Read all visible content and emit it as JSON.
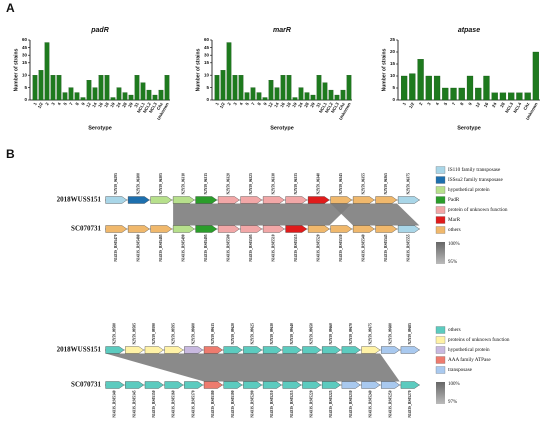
{
  "panel_a": {
    "label": "A"
  },
  "chart_data": [
    {
      "type": "bar",
      "title": "padR",
      "x_label": "Serotype",
      "y_label": "Number of strains",
      "color": "#1e7a1e",
      "categories": [
        "1",
        "1/2",
        "2",
        "3",
        "4",
        "5",
        "7",
        "8",
        "9",
        "12",
        "14",
        "16",
        "18",
        "19",
        "24",
        "28",
        "29",
        "31",
        "NCL1",
        "NCL2",
        "NCL3",
        "Chz",
        "Unknown"
      ],
      "values": [
        10,
        12,
        55,
        10,
        10,
        3,
        5,
        3,
        1,
        8,
        5,
        10,
        10,
        1,
        5,
        3,
        2,
        10,
        7,
        4,
        2,
        4,
        10
      ],
      "ylim": [
        0,
        60
      ],
      "yticks": [
        0,
        5,
        10,
        15,
        30,
        45,
        60
      ],
      "axis_break": 15
    },
    {
      "type": "bar",
      "title": "marR",
      "x_label": "Serotype",
      "y_label": "Number of strains",
      "color": "#1e7a1e",
      "categories": [
        "1",
        "1/2",
        "2",
        "3",
        "4",
        "5",
        "7",
        "8",
        "9",
        "12",
        "14",
        "16",
        "18",
        "19",
        "24",
        "28",
        "29",
        "31",
        "NCL1",
        "NCL2",
        "NCL3",
        "Chz",
        "Unknown"
      ],
      "values": [
        10,
        12,
        55,
        10,
        10,
        3,
        5,
        3,
        1,
        8,
        5,
        10,
        10,
        1,
        5,
        3,
        2,
        10,
        7,
        4,
        2,
        4,
        10
      ],
      "ylim": [
        0,
        60
      ],
      "yticks": [
        0,
        5,
        10,
        15,
        30,
        45,
        60
      ],
      "axis_break": 15
    },
    {
      "type": "bar",
      "title": "atpase",
      "x_label": "Serotype",
      "y_label": "Number of strains",
      "color": "#1e7a1e",
      "categories": [
        "1",
        "1/2",
        "2",
        "3",
        "4",
        "5",
        "7",
        "8",
        "9",
        "12",
        "16",
        "24",
        "28",
        "NCL3",
        "NCL4",
        "Chz",
        "Unknown"
      ],
      "values": [
        10,
        11,
        17,
        10,
        10,
        5,
        5,
        5,
        10,
        5,
        10,
        3,
        3,
        3,
        3,
        3,
        20
      ],
      "ylim": [
        0,
        25
      ],
      "yticks": [
        0,
        5,
        10,
        15,
        20,
        25
      ]
    }
  ],
  "panel_b": {
    "label": "B",
    "diagrams": [
      {
        "top_name": "2018WUSS151",
        "bottom_name": "SC070731",
        "legend": [
          {
            "name": "IS110 family transposase",
            "color": "#a9d6e8"
          },
          {
            "name": "ISSsu2 family transposase",
            "color": "#1d6fae"
          },
          {
            "name": "hypothetical protein",
            "color": "#b7e08c"
          },
          {
            "name": "PadR",
            "color": "#2a9d2a"
          },
          {
            "name": "protein of unknown function",
            "color": "#f2a7a7"
          },
          {
            "name": "MarR",
            "color": "#e01b1b"
          },
          {
            "name": "others",
            "color": "#f0b86c"
          }
        ],
        "identity_max": "100%",
        "identity_min": "95%",
        "top_genes": [
          {
            "label": "N2Y59_06295",
            "kind": 0
          },
          {
            "label": "N2Y59_06300",
            "kind": 1
          },
          {
            "label": "N2Y59_06305",
            "kind": 2
          },
          {
            "label": "N2Y59_06310",
            "kind": 2
          },
          {
            "label": "N2Y59_06315",
            "kind": 3
          },
          {
            "label": "N2Y59_06320",
            "kind": 4
          },
          {
            "label": "N2Y59_06325",
            "kind": 4
          },
          {
            "label": "N2Y59_06330",
            "kind": 4
          },
          {
            "label": "N2Y59_06335",
            "kind": 4
          },
          {
            "label": "N2Y59_06340",
            "kind": 5
          },
          {
            "label": "N2Y59_06345",
            "kind": 6
          },
          {
            "label": "N2Y59_06355",
            "kind": 6
          },
          {
            "label": "N2Y59_06365",
            "kind": 6
          },
          {
            "label": "N2Y59_06375",
            "kind": 0
          }
        ],
        "bottom_genes": [
          {
            "label": "N1433S_RS05470",
            "kind": 6
          },
          {
            "label": "N1433S_RS05480",
            "kind": 6
          },
          {
            "label": "N1433S_RS05485",
            "kind": 6
          },
          {
            "label": "N1433S_RS05490",
            "kind": 2
          },
          {
            "label": "N1433S_RS05495",
            "kind": 3
          },
          {
            "label": "N1433S_RS05500",
            "kind": 4
          },
          {
            "label": "N1433S_RS05505",
            "kind": 4
          },
          {
            "label": "N1433S_RS05510",
            "kind": 4
          },
          {
            "label": "N1433S_RS05515",
            "kind": 5
          },
          {
            "label": "N1433S_RS05520",
            "kind": 6
          },
          {
            "label": "N1433S_RS05530",
            "kind": 6
          },
          {
            "label": "N1433S_RS05540",
            "kind": 6
          },
          {
            "label": "N1433S_RS05545",
            "kind": 6
          },
          {
            "label": "N1433S_RS05555",
            "kind": 0
          }
        ]
      },
      {
        "top_name": "2018WUSS151",
        "bottom_name": "SC070731",
        "legend": [
          {
            "name": "others",
            "color": "#5ccbbf"
          },
          {
            "name": "proteins of unknown function",
            "color": "#fff2a6"
          },
          {
            "name": "hypothetical protein",
            "color": "#c8b9e0"
          },
          {
            "name": "AAA family ATPase",
            "color": "#ee7b6e"
          },
          {
            "name": "transposase",
            "color": "#a9c9ef"
          }
        ],
        "identity_max": "100%",
        "identity_min": "97%",
        "top_genes": [
          {
            "label": "N2Y59_09580",
            "kind": 0
          },
          {
            "label": "N2Y59_09585",
            "kind": 1
          },
          {
            "label": "N2Y59_09590",
            "kind": 1
          },
          {
            "label": "N2Y59_09595",
            "kind": 1
          },
          {
            "label": "N2Y59_09600",
            "kind": 2
          },
          {
            "label": "N2Y59_09615",
            "kind": 3
          },
          {
            "label": "N2Y59_09620",
            "kind": 0
          },
          {
            "label": "N2Y59_09625",
            "kind": 0
          },
          {
            "label": "N2Y59_09630",
            "kind": 0
          },
          {
            "label": "N2Y59_09640",
            "kind": 0
          },
          {
            "label": "N2Y59_09650",
            "kind": 0
          },
          {
            "label": "N2Y59_09660",
            "kind": 0
          },
          {
            "label": "N2Y59_09670",
            "kind": 0
          },
          {
            "label": "N2Y59_09675",
            "kind": 1
          },
          {
            "label": "N2Y59_09680",
            "kind": 4
          },
          {
            "label": "N2Y59_09685",
            "kind": 4
          }
        ],
        "bottom_genes": [
          {
            "label": "N1433S_RS05140",
            "kind": 0
          },
          {
            "label": "N1433S_RS05145",
            "kind": 0
          },
          {
            "label": "N1433S_RS05150",
            "kind": 0
          },
          {
            "label": "N1433S_RS05160",
            "kind": 0
          },
          {
            "label": "N1433S_RS05170",
            "kind": 0
          },
          {
            "label": "N1433S_RS05180",
            "kind": 3
          },
          {
            "label": "N1433S_RS05190",
            "kind": 0
          },
          {
            "label": "N1433S_RS05200",
            "kind": 0
          },
          {
            "label": "N1433S_RS05210",
            "kind": 0
          },
          {
            "label": "N1433S_RS05215",
            "kind": 0
          },
          {
            "label": "N1433S_RS05220",
            "kind": 0
          },
          {
            "label": "N1433S_RS05225",
            "kind": 0
          },
          {
            "label": "N1433S_RS05230",
            "kind": 4
          },
          {
            "label": "N1433S_RS05240",
            "kind": 4
          },
          {
            "label": "N1433S_RS05250",
            "kind": 4
          },
          {
            "label": "N1433S_RS05270",
            "kind": 0
          }
        ]
      }
    ]
  }
}
